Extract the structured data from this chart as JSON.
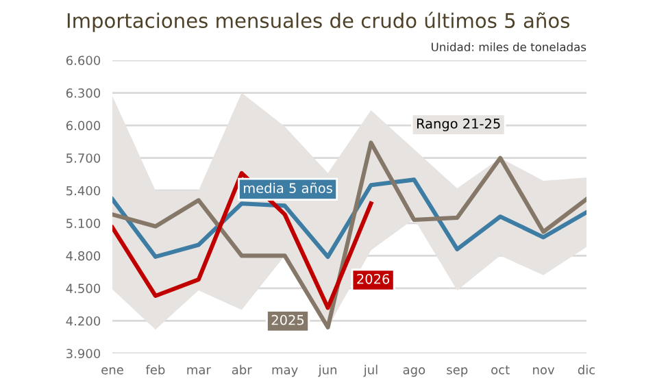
{
  "chart_data": {
    "type": "line",
    "title": "Importaciones mensuales de crudo últimos 5 años",
    "subtitle": "Unidad: miles de toneladas",
    "categories": [
      "ene",
      "feb",
      "mar",
      "abr",
      "may",
      "jun",
      "jul",
      "ago",
      "sep",
      "oct",
      "nov",
      "dic"
    ],
    "series": [
      {
        "name": "media 5 años",
        "color": "#3d7ca3",
        "values": [
          5320,
          4790,
          4900,
          5280,
          5260,
          4790,
          5450,
          5500,
          4860,
          5160,
          4970,
          5200
        ],
        "lower": [
          4490,
          4120,
          4480,
          4300,
          4800,
          4140,
          4850,
          5140,
          4480,
          4800,
          4620,
          4880
        ],
        "upper": [
          6270,
          5400,
          5400,
          6300,
          5990,
          5560,
          6140,
          5780,
          5420,
          5700,
          5490,
          5520
        ]
      },
      {
        "name": "2025",
        "color": "#857868",
        "values": [
          5180,
          5070,
          5310,
          4800,
          4800,
          4140,
          5840,
          5130,
          5150,
          5700,
          5020,
          5320
        ]
      },
      {
        "name": "2026",
        "color": "#c00000",
        "values": [
          5060,
          4430,
          4580,
          5560,
          5180,
          4320,
          5280,
          null,
          null,
          null,
          null,
          null
        ]
      }
    ],
    "annotations": [
      "Rango 21-25"
    ],
    "ylim": [
      3900,
      6600
    ],
    "yticks": [
      {
        "value": 3900,
        "label": "3.900"
      },
      {
        "value": 4200,
        "label": "4.200"
      },
      {
        "value": 4500,
        "label": "4.500"
      },
      {
        "value": 4800,
        "label": "4.800"
      },
      {
        "value": 5100,
        "label": "5.100"
      },
      {
        "value": 5400,
        "label": "5.400"
      },
      {
        "value": 5700,
        "label": "5.700"
      },
      {
        "value": 6000,
        "label": "6.000"
      },
      {
        "value": 6300,
        "label": "6.300"
      },
      {
        "value": 6600,
        "label": "6.600"
      }
    ],
    "grid": "y",
    "legend": false
  }
}
